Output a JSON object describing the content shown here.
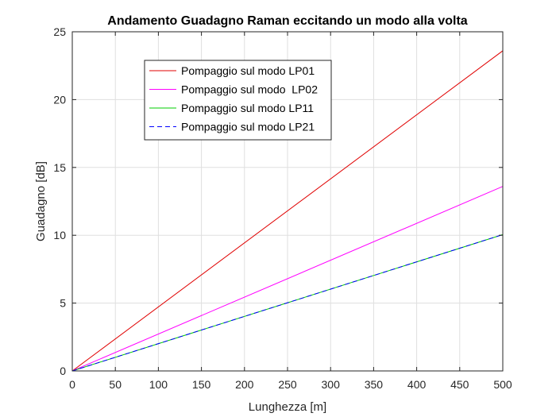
{
  "chart_data": {
    "type": "line",
    "title": "Andamento Guadagno Raman eccitando un modo alla volta",
    "xlabel": "Lunghezza [m]",
    "ylabel": "Guadagno [dB]",
    "xlim": [
      0,
      500
    ],
    "ylim": [
      0,
      25
    ],
    "xticks": [
      0,
      50,
      100,
      150,
      200,
      250,
      300,
      350,
      400,
      450,
      500
    ],
    "yticks": [
      0,
      5,
      10,
      15,
      20,
      25
    ],
    "grid": true,
    "legend_position": "top-left",
    "series": [
      {
        "name": "Pompaggio sul modo LP01",
        "color": "#e00000",
        "dash": "solid",
        "x": [
          0,
          500
        ],
        "y": [
          0,
          23.6
        ]
      },
      {
        "name": "Pompaggio sul modo  LP02",
        "color": "#ff00ff",
        "dash": "solid",
        "x": [
          0,
          500
        ],
        "y": [
          0,
          13.6
        ]
      },
      {
        "name": "Pompaggio sul modo LP11",
        "color": "#00cc00",
        "dash": "solid",
        "x": [
          0,
          500
        ],
        "y": [
          0,
          10.05
        ]
      },
      {
        "name": "Pompaggio sul modo LP21",
        "color": "#0000ff",
        "dash": "dashed",
        "x": [
          0,
          500
        ],
        "y": [
          0,
          10.05
        ]
      }
    ]
  }
}
